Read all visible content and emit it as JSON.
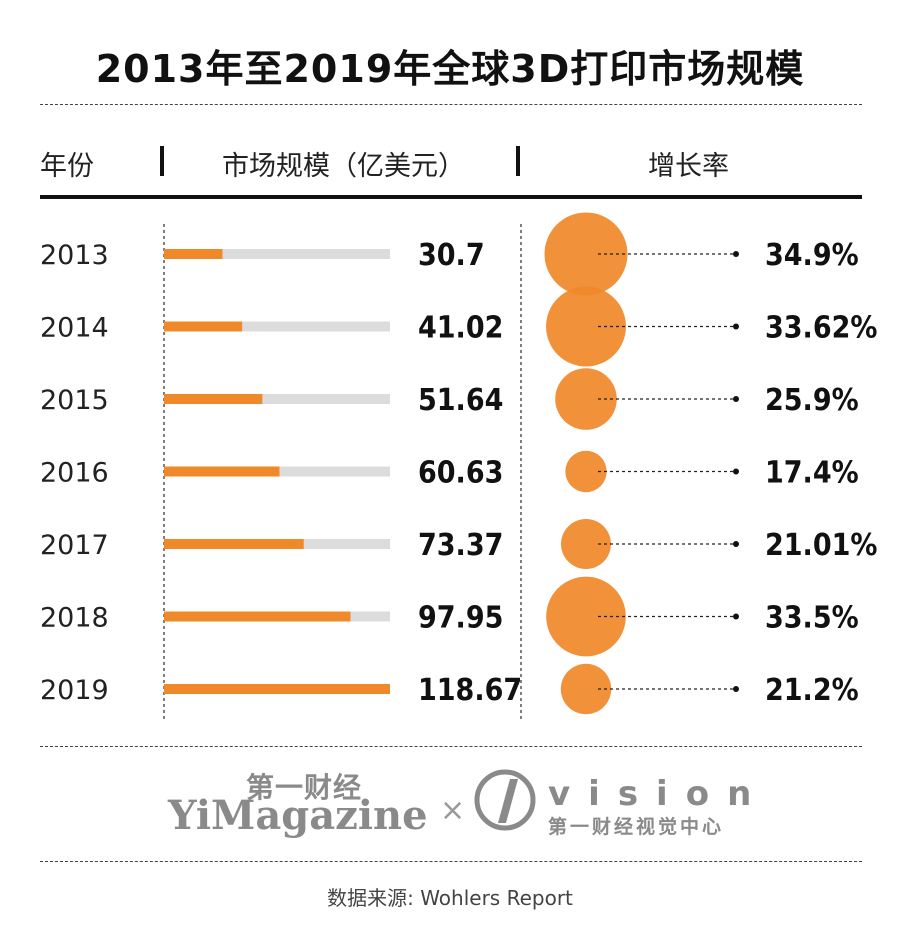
{
  "title": "2013年至2019年全球3D打印市场规模",
  "headers": {
    "year": "年份",
    "market": "市场规模（亿美元）",
    "growth": "增长率"
  },
  "logos": {
    "yimagazine_cn": "第一财经",
    "yimagazine_en": "YiMagazine",
    "separator": "×",
    "vision_en": "vision",
    "vision_cn": "第一财经视觉中心"
  },
  "source": "数据来源: Wohlers Report",
  "colors": {
    "accent": "#f0892a",
    "track": "#dcdcdc",
    "text": "#111111"
  },
  "chart_data": {
    "type": "table",
    "categories": [
      "2013",
      "2014",
      "2015",
      "2016",
      "2017",
      "2018",
      "2019"
    ],
    "series": [
      {
        "name": "市场规模（亿美元）",
        "values": [
          30.7,
          41.02,
          51.64,
          60.63,
          73.37,
          97.95,
          118.67
        ],
        "labels": [
          "30.7",
          "41.02",
          "51.64",
          "60.63",
          "73.37",
          "97.95",
          "118.67"
        ]
      },
      {
        "name": "增长率",
        "values": [
          34.9,
          33.62,
          25.9,
          17.4,
          21.01,
          33.5,
          21.2
        ],
        "labels": [
          "34.9%",
          "33.62%",
          "25.9%",
          "17.4%",
          "21.01%",
          "33.5%",
          "21.2%"
        ]
      }
    ],
    "bar_max": 118.67
  }
}
